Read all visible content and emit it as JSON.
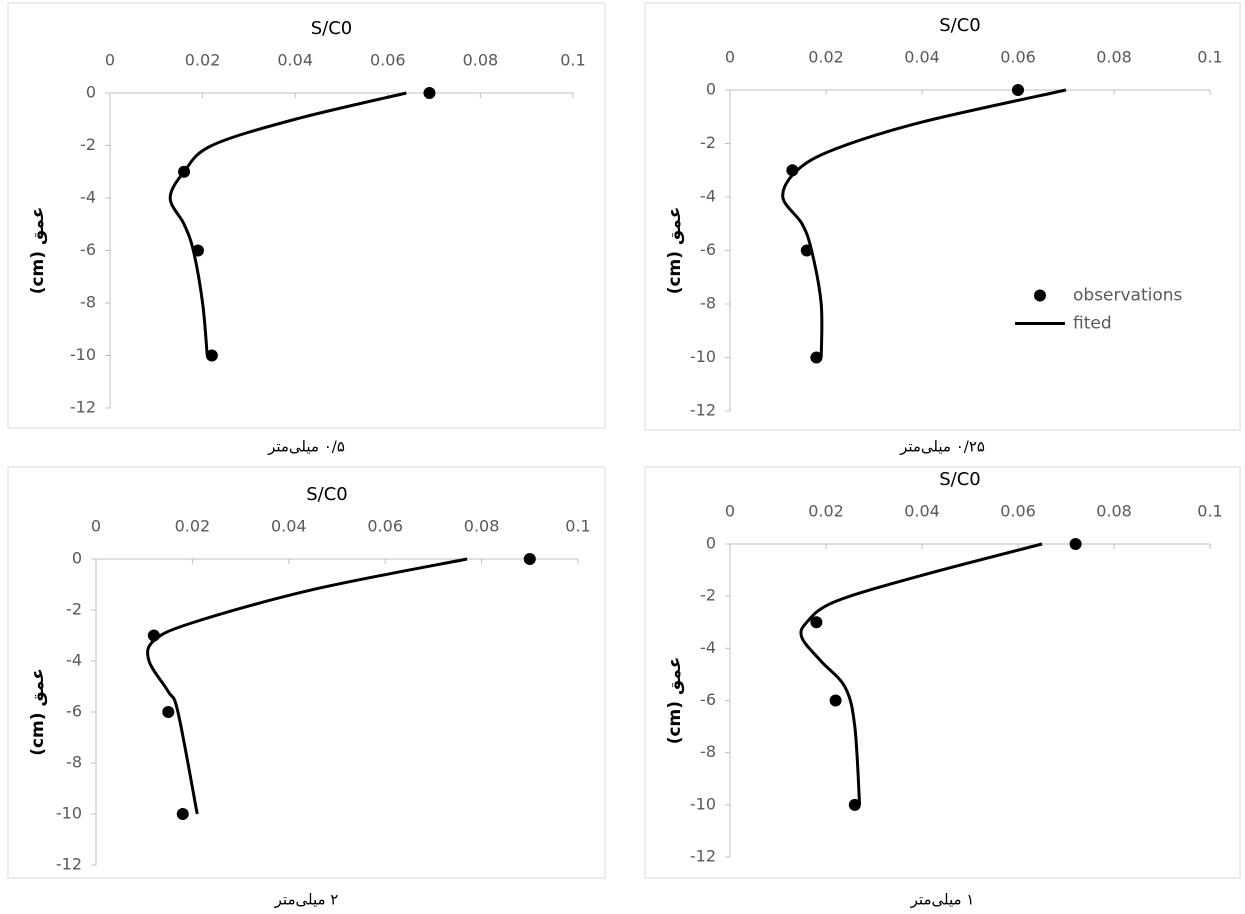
{
  "chart_data": [
    {
      "type": "scatter",
      "title": "S/C0",
      "y_label": "عمق (cm)",
      "caption": "۰/۵ میلی‌متر",
      "xlim": [
        0,
        0.1
      ],
      "xticks": [
        0,
        0.02,
        0.04,
        0.06,
        0.08,
        0.1
      ],
      "ylim": [
        -12,
        0
      ],
      "yticks": [
        0,
        -2,
        -4,
        -6,
        -8,
        -10,
        -12
      ],
      "series": [
        {
          "kind": "marker",
          "color": "#000000",
          "x": [
            0.069,
            0.016,
            0.019,
            0.022
          ],
          "values": [
            0,
            -3,
            -6,
            -10
          ]
        },
        {
          "kind": "line",
          "color": "#000000",
          "x": [
            0.064,
            0.04,
            0.022,
            0.016,
            0.013,
            0.016,
            0.018,
            0.02,
            0.021
          ],
          "values": [
            0,
            -1,
            -2,
            -3,
            -4,
            -5,
            -6,
            -8,
            -10
          ]
        }
      ]
    },
    {
      "type": "scatter",
      "title": "S/C0",
      "y_label": "عمق (cm)",
      "caption": "۰/۲۵ میلی‌متر",
      "legend": "right",
      "xlim": [
        0,
        0.1
      ],
      "xticks": [
        0,
        0.02,
        0.04,
        0.06,
        0.08,
        0.1
      ],
      "ylim": [
        -12,
        0
      ],
      "yticks": [
        0,
        -2,
        -4,
        -6,
        -8,
        -10,
        -12
      ],
      "series": [
        {
          "name": "observations",
          "kind": "marker",
          "color": "#000000",
          "x": [
            0.06,
            0.013,
            0.016,
            0.018
          ],
          "values": [
            0,
            -3,
            -6,
            -10
          ]
        },
        {
          "name": "fited",
          "kind": "line",
          "color": "#000000",
          "x": [
            0.07,
            0.04,
            0.022,
            0.014,
            0.011,
            0.015,
            0.017,
            0.019,
            0.019
          ],
          "values": [
            0,
            -1.2,
            -2.2,
            -3,
            -4,
            -5,
            -6,
            -8,
            -10
          ]
        }
      ]
    },
    {
      "type": "scatter",
      "title": "S/C0",
      "y_label": "عمق (cm)",
      "caption": "۲ میلی‌متر",
      "xlim": [
        0,
        0.1
      ],
      "xticks": [
        0,
        0.02,
        0.04,
        0.06,
        0.08,
        0.1
      ],
      "ylim": [
        -12,
        0
      ],
      "yticks": [
        0,
        -2,
        -4,
        -6,
        -8,
        -10,
        -12
      ],
      "series": [
        {
          "kind": "marker",
          "color": "#000000",
          "x": [
            0.09,
            0.012,
            0.015,
            0.018
          ],
          "values": [
            0,
            -3,
            -6,
            -10
          ]
        },
        {
          "kind": "line",
          "color": "#000000",
          "x": [
            0.077,
            0.045,
            0.02,
            0.012,
            0.011,
            0.015,
            0.017,
            0.021
          ],
          "values": [
            0,
            -1.2,
            -2.5,
            -3.2,
            -4,
            -5.2,
            -6,
            -10
          ]
        }
      ]
    },
    {
      "type": "scatter",
      "title": "S/C0",
      "y_label": "عمق (cm)",
      "caption": "۱ میلی‌متر",
      "xlim": [
        0,
        0.1
      ],
      "xticks": [
        0,
        0.02,
        0.04,
        0.06,
        0.08,
        0.1
      ],
      "ylim": [
        -12,
        0
      ],
      "yticks": [
        0,
        -2,
        -4,
        -6,
        -8,
        -10,
        -12
      ],
      "series": [
        {
          "kind": "marker",
          "color": "#000000",
          "x": [
            0.072,
            0.018,
            0.022,
            0.026
          ],
          "values": [
            0,
            -3,
            -6,
            -10
          ]
        },
        {
          "kind": "line",
          "color": "#000000",
          "x": [
            0.065,
            0.04,
            0.022,
            0.016,
            0.015,
            0.019,
            0.024,
            0.026,
            0.027
          ],
          "values": [
            0,
            -1.2,
            -2.2,
            -3,
            -3.6,
            -4.5,
            -5.5,
            -7,
            -10
          ]
        }
      ]
    }
  ]
}
